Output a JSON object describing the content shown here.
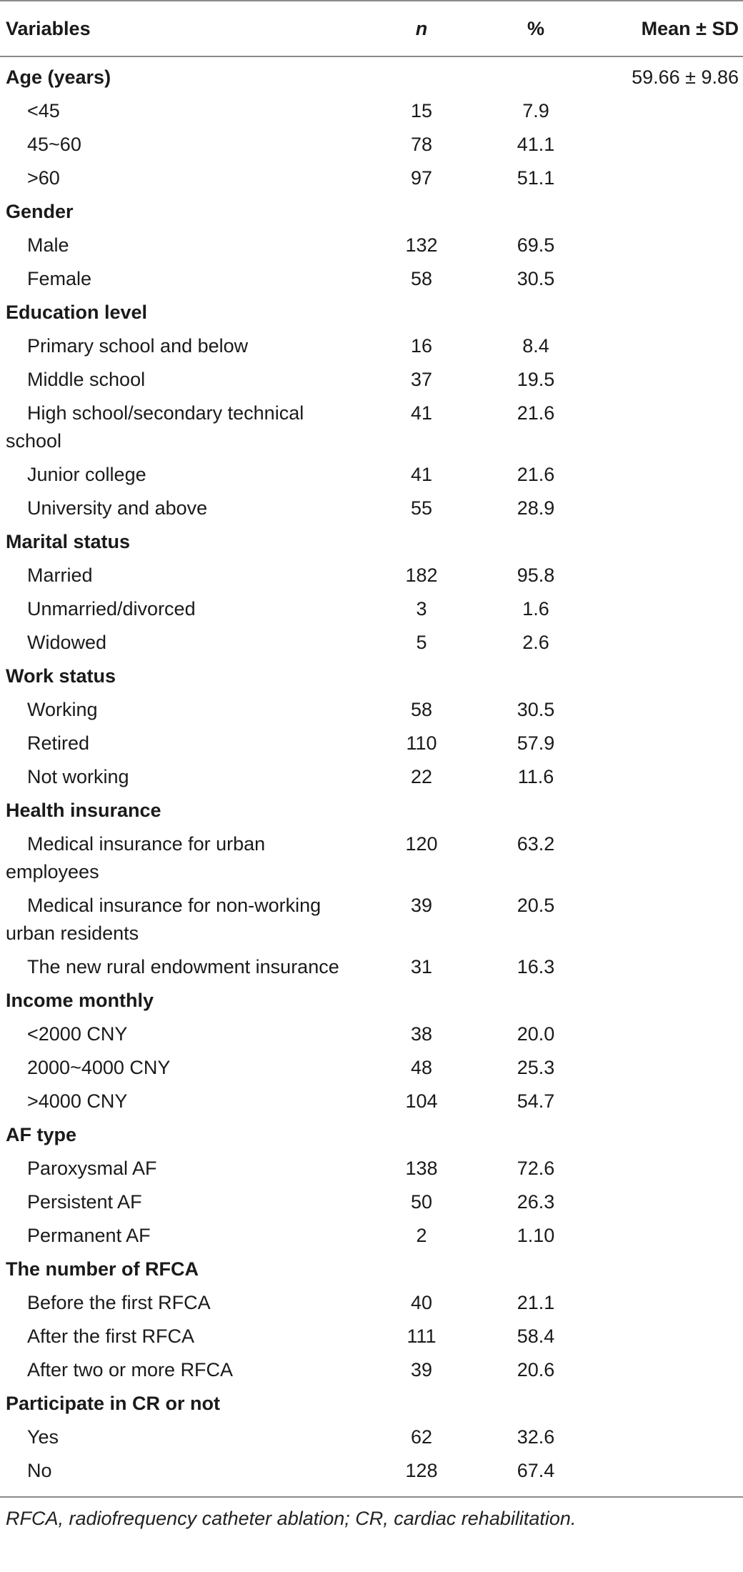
{
  "table": {
    "headers": [
      "Variables",
      "n",
      "%",
      "Mean ± SD"
    ],
    "rows": [
      {
        "type": "section",
        "label": "Age (years)",
        "n": "",
        "pct": "",
        "mean": "59.66 ± 9.86"
      },
      {
        "type": "item",
        "label": "<45",
        "n": "15",
        "pct": "7.9",
        "mean": ""
      },
      {
        "type": "item",
        "label": "45~60",
        "n": "78",
        "pct": "41.1",
        "mean": ""
      },
      {
        "type": "item",
        "label": ">60",
        "n": "97",
        "pct": "51.1",
        "mean": ""
      },
      {
        "type": "section",
        "label": "Gender",
        "n": "",
        "pct": "",
        "mean": ""
      },
      {
        "type": "item",
        "label": "Male",
        "n": "132",
        "pct": "69.5",
        "mean": ""
      },
      {
        "type": "item",
        "label": "Female",
        "n": "58",
        "pct": "30.5",
        "mean": ""
      },
      {
        "type": "section",
        "label": "Education level",
        "n": "",
        "pct": "",
        "mean": ""
      },
      {
        "type": "item",
        "label": "Primary school and below",
        "n": "16",
        "pct": "8.4",
        "mean": ""
      },
      {
        "type": "item",
        "label": "Middle school",
        "n": "37",
        "pct": "19.5",
        "mean": ""
      },
      {
        "type": "item",
        "wrap": true,
        "label": "High school/secondary technical school",
        "n": "41",
        "pct": "21.6",
        "mean": ""
      },
      {
        "type": "item",
        "label": "Junior college",
        "n": "41",
        "pct": "21.6",
        "mean": ""
      },
      {
        "type": "item",
        "label": "University and above",
        "n": "55",
        "pct": "28.9",
        "mean": ""
      },
      {
        "type": "section",
        "label": "Marital status",
        "n": "",
        "pct": "",
        "mean": ""
      },
      {
        "type": "item",
        "label": "Married",
        "n": "182",
        "pct": "95.8",
        "mean": ""
      },
      {
        "type": "item",
        "label": "Unmarried/divorced",
        "n": "3",
        "pct": "1.6",
        "mean": ""
      },
      {
        "type": "item",
        "label": "Widowed",
        "n": "5",
        "pct": "2.6",
        "mean": ""
      },
      {
        "type": "section",
        "label": "Work status",
        "n": "",
        "pct": "",
        "mean": ""
      },
      {
        "type": "item",
        "label": "Working",
        "n": "58",
        "pct": "30.5",
        "mean": ""
      },
      {
        "type": "item",
        "label": "Retired",
        "n": "110",
        "pct": "57.9",
        "mean": ""
      },
      {
        "type": "item",
        "label": "Not working",
        "n": "22",
        "pct": "11.6",
        "mean": ""
      },
      {
        "type": "section",
        "label": "Health insurance",
        "n": "",
        "pct": "",
        "mean": ""
      },
      {
        "type": "item",
        "wrap": true,
        "label": "Medical insurance for urban employees",
        "n": "120",
        "pct": "63.2",
        "mean": ""
      },
      {
        "type": "item",
        "wrap": true,
        "label": "Medical insurance for non-working urban residents",
        "n": "39",
        "pct": "20.5",
        "mean": ""
      },
      {
        "type": "item",
        "wrap": true,
        "label": "The new rural endowment insurance",
        "n": "31",
        "pct": "16.3",
        "mean": ""
      },
      {
        "type": "section",
        "label": "Income monthly",
        "n": "",
        "pct": "",
        "mean": ""
      },
      {
        "type": "item",
        "label": "<2000 CNY",
        "n": "38",
        "pct": "20.0",
        "mean": ""
      },
      {
        "type": "item",
        "label": "2000~4000 CNY",
        "n": "48",
        "pct": "25.3",
        "mean": ""
      },
      {
        "type": "item",
        "label": ">4000 CNY",
        "n": "104",
        "pct": "54.7",
        "mean": ""
      },
      {
        "type": "section",
        "label": "AF type",
        "n": "",
        "pct": "",
        "mean": ""
      },
      {
        "type": "item",
        "label": "Paroxysmal AF",
        "n": "138",
        "pct": "72.6",
        "mean": ""
      },
      {
        "type": "item",
        "label": "Persistent AF",
        "n": "50",
        "pct": "26.3",
        "mean": ""
      },
      {
        "type": "item",
        "label": "Permanent AF",
        "n": "2",
        "pct": "1.10",
        "mean": ""
      },
      {
        "type": "section",
        "label": "The number of RFCA",
        "n": "",
        "pct": "",
        "mean": ""
      },
      {
        "type": "item",
        "label": "Before the first RFCA",
        "n": "40",
        "pct": "21.1",
        "mean": ""
      },
      {
        "type": "item",
        "label": "After the first RFCA",
        "n": "111",
        "pct": "58.4",
        "mean": ""
      },
      {
        "type": "item",
        "label": "After two or more RFCA",
        "n": "39",
        "pct": "20.6",
        "mean": ""
      },
      {
        "type": "section",
        "label": "Participate in CR or not",
        "n": "",
        "pct": "",
        "mean": ""
      },
      {
        "type": "item",
        "label": "Yes",
        "n": "62",
        "pct": "32.6",
        "mean": ""
      },
      {
        "type": "item",
        "label": "No",
        "n": "128",
        "pct": "67.4",
        "mean": ""
      }
    ]
  },
  "footnote": "RFCA, radiofrequency catheter ablation; CR, cardiac rehabilitation."
}
